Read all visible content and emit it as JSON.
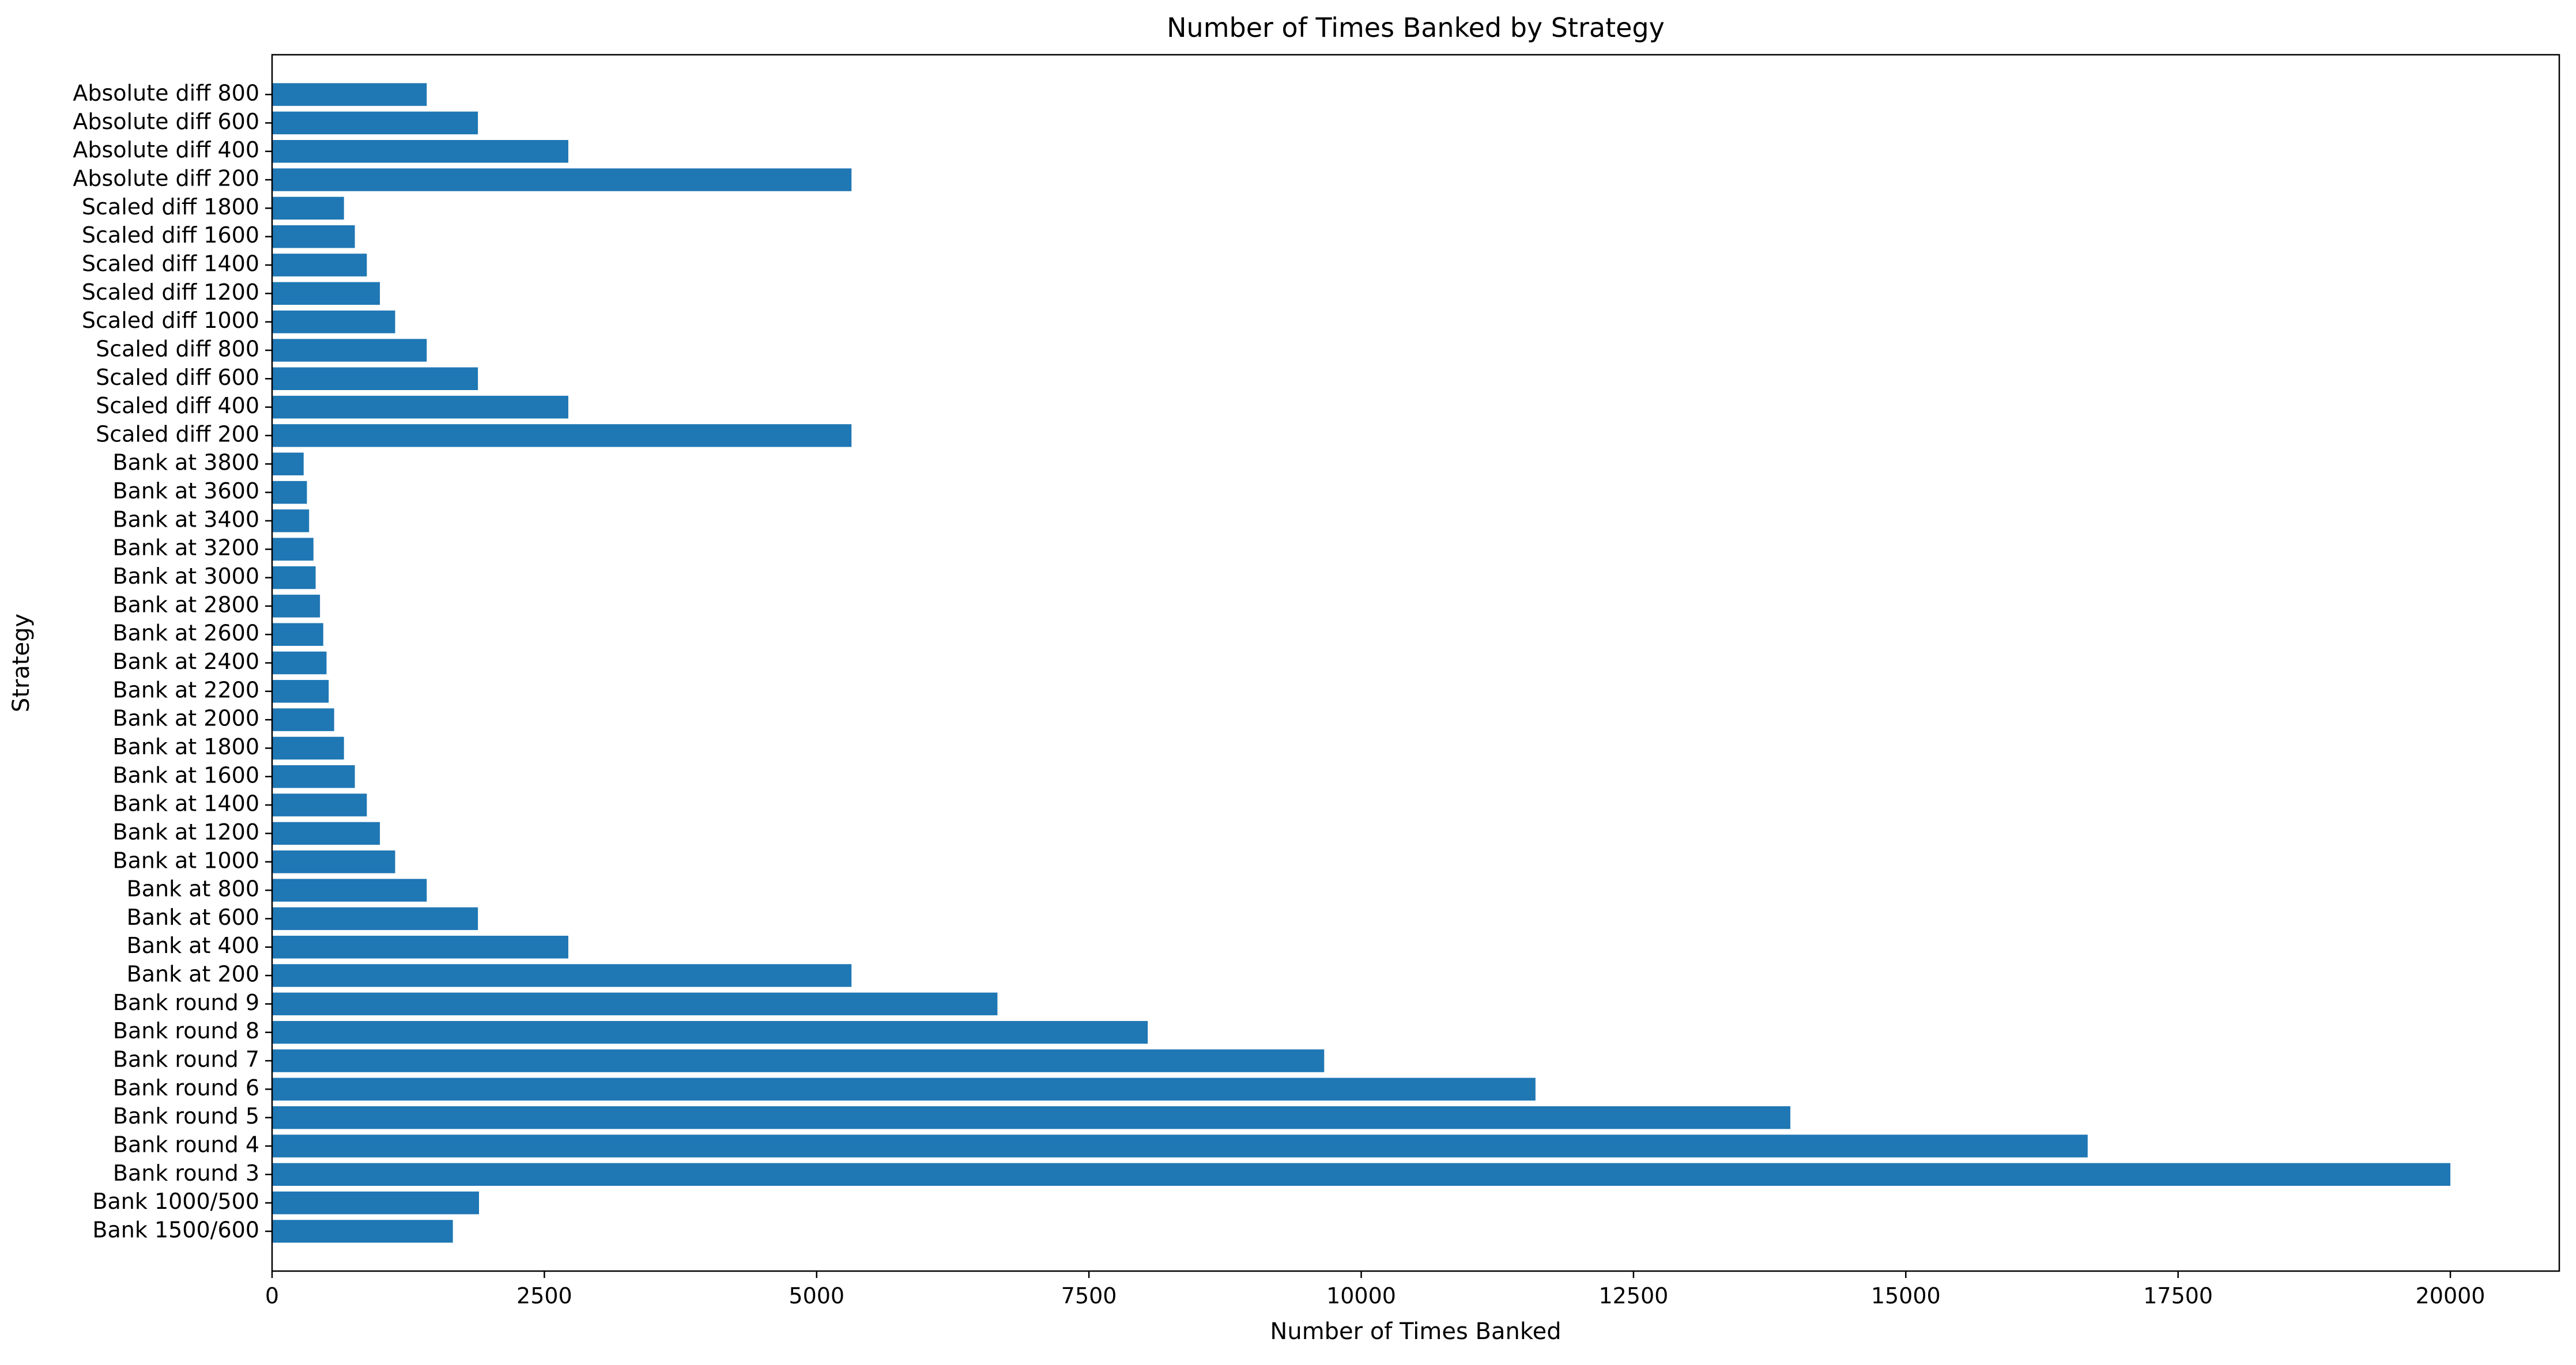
{
  "chart_data": {
    "type": "bar",
    "orientation": "horizontal",
    "title": "Number of Times Banked by Strategy",
    "xlabel": "Number of Times Banked",
    "ylabel": "Strategy",
    "xlim": [
      0,
      21000
    ],
    "xticks": [
      0,
      2500,
      5000,
      7500,
      10000,
      12500,
      15000,
      17500,
      20000
    ],
    "grid": false,
    "legend": "none",
    "bar_color": "#1f77b4",
    "categories": [
      "Bank 1500/600",
      "Bank 1000/500",
      "Bank round 3",
      "Bank round 4",
      "Bank round 5",
      "Bank round 6",
      "Bank round 7",
      "Bank round 8",
      "Bank round 9",
      "Bank at 200",
      "Bank at 400",
      "Bank at 600",
      "Bank at 800",
      "Bank at 1000",
      "Bank at 1200",
      "Bank at 1400",
      "Bank at 1600",
      "Bank at 1800",
      "Bank at 2000",
      "Bank at 2200",
      "Bank at 2400",
      "Bank at 2600",
      "Bank at 2800",
      "Bank at 3000",
      "Bank at 3200",
      "Bank at 3400",
      "Bank at 3600",
      "Bank at 3800",
      "Scaled diff 200",
      "Scaled diff 400",
      "Scaled diff 600",
      "Scaled diff 800",
      "Scaled diff 1000",
      "Scaled diff 1200",
      "Scaled diff 1400",
      "Scaled diff 1600",
      "Scaled diff 1800",
      "Absolute diff 200",
      "Absolute diff 400",
      "Absolute diff 600",
      "Absolute diff 800"
    ],
    "values": [
      1660,
      1900,
      20000,
      16670,
      13940,
      11600,
      9660,
      8040,
      6660,
      5320,
      2720,
      1890,
      1420,
      1130,
      990,
      870,
      760,
      660,
      570,
      520,
      500,
      470,
      440,
      400,
      380,
      340,
      320,
      290,
      5320,
      2720,
      1890,
      1420,
      1130,
      990,
      870,
      760,
      660,
      5320,
      2720,
      1890,
      1420
    ]
  }
}
